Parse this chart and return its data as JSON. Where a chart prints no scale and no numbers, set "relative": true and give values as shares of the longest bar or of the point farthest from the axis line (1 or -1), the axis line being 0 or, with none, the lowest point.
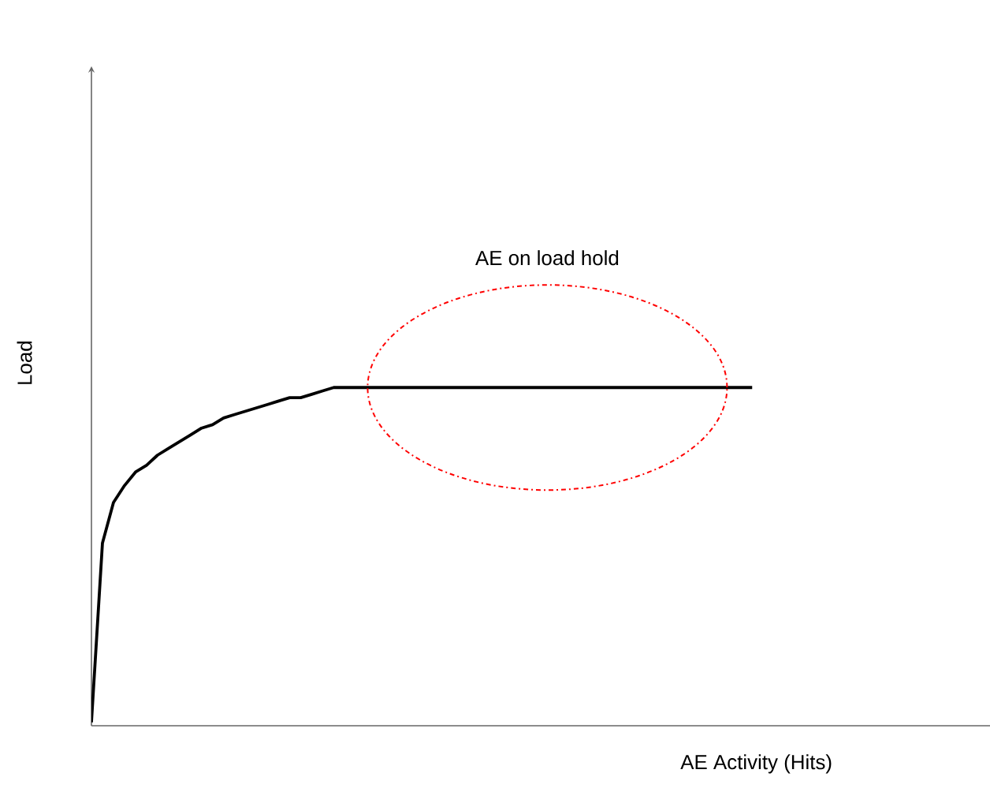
{
  "chart_data": {
    "type": "line",
    "relative": true,
    "xlabel": "AE Activity (Hits)",
    "ylabel": "Load",
    "categories": [
      null,
      null,
      null,
      null,
      null,
      null,
      null,
      null,
      null,
      null,
      null,
      null,
      null,
      null,
      null,
      null,
      null,
      null,
      null,
      null,
      null,
      null,
      null,
      null,
      null,
      null,
      null,
      null,
      null,
      null,
      null,
      null,
      null,
      null,
      null,
      null,
      null,
      null,
      null,
      null,
      null,
      null,
      null,
      null,
      null,
      null,
      null,
      null,
      null,
      null,
      null,
      null,
      null,
      null,
      null,
      null,
      null,
      null,
      null,
      null,
      null
    ],
    "series": [
      {
        "color": "#000000",
        "values": [
          0.01,
          0.54,
          0.66,
          0.71,
          0.75,
          0.77,
          0.8,
          0.82,
          0.84,
          0.86,
          0.88,
          0.89,
          0.91,
          0.92,
          0.93,
          0.94,
          0.95,
          0.96,
          0.97,
          0.97,
          0.98,
          0.99,
          1,
          1,
          1,
          1,
          1,
          1,
          1,
          1,
          1,
          1,
          1,
          1,
          1,
          1,
          1,
          1,
          1,
          1,
          1,
          1,
          1,
          1,
          1,
          1,
          1,
          1,
          1,
          1,
          1,
          1,
          1,
          1,
          1,
          1,
          1,
          1,
          1,
          1,
          1
        ]
      }
    ],
    "annotations": [
      "AE on load hold"
    ],
    "marker": "none",
    "line_style": "solid"
  }
}
